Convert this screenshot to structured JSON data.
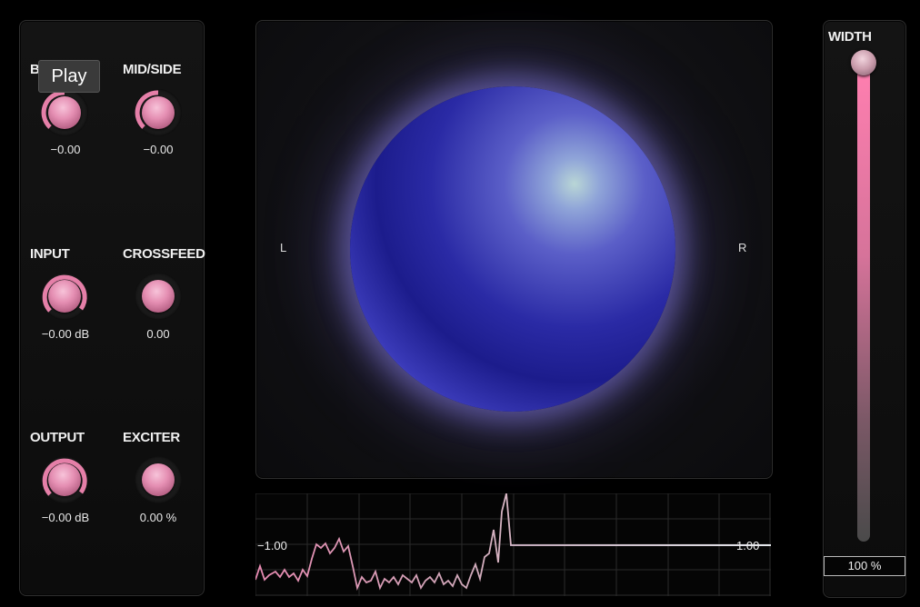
{
  "tooltip": "Play",
  "knobs": {
    "balance": {
      "label": "B",
      "value": "−0.00",
      "level": 0.5
    },
    "midside": {
      "label": "MID/SIDE",
      "value": "−0.00",
      "level": 0.5
    },
    "input": {
      "label": "INPUT",
      "value": "−0.00 dB",
      "level": 0.7
    },
    "crossfeed": {
      "label": "CROSSFEED",
      "value": "0.00",
      "level": 0.0
    },
    "output": {
      "label": "OUTPUT",
      "value": "−0.00 dB",
      "level": 0.7
    },
    "exciter": {
      "label": "EXCITER",
      "value": "0.00 %",
      "level": 0.0
    }
  },
  "display": {
    "left_label": "L",
    "right_label": "R"
  },
  "scope": {
    "left_value": "−1.00",
    "right_value": "1.00"
  },
  "width": {
    "label": "WIDTH",
    "value": "100 %",
    "level": 1.0
  },
  "colors": {
    "accent": "#e57fa8",
    "sphere": "#2a2aa5",
    "trace": "#ffffff",
    "line": "#5b8fd8"
  }
}
